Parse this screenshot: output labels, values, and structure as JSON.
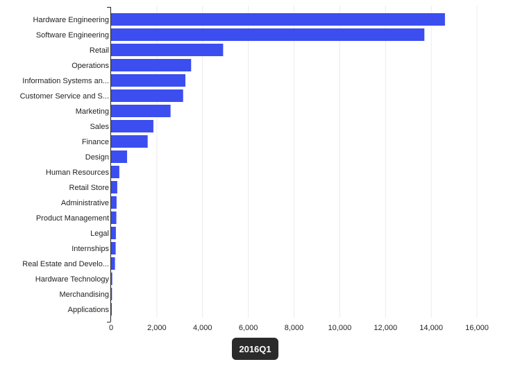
{
  "chart_data": {
    "type": "bar",
    "orientation": "horizontal",
    "categories": [
      "Hardware Engineering",
      "Software Engineering",
      "Retail",
      "Operations",
      "Information Systems an...",
      "Customer Service and S...",
      "Marketing",
      "Sales",
      "Finance",
      "Design",
      "Human Resources",
      "Retail Store",
      "Administrative",
      "Product Management",
      "Legal",
      "Internships",
      "Real Estate and Develo...",
      "Hardware Technology",
      "Merchandising",
      "Applications"
    ],
    "values": [
      14600,
      13700,
      4900,
      3500,
      3250,
      3150,
      2600,
      1850,
      1600,
      700,
      360,
      270,
      240,
      230,
      210,
      200,
      170,
      50,
      40,
      20
    ],
    "xlim": [
      0,
      16000
    ],
    "x_ticks": [
      "0",
      "2,000",
      "4,000",
      "6,000",
      "8,000",
      "10,000",
      "12,000",
      "14,000",
      "16,000"
    ],
    "x_tick_values": [
      0,
      2000,
      4000,
      6000,
      8000,
      10000,
      12000,
      14000,
      16000
    ],
    "grid": true,
    "bar_color": "#3c4ef0",
    "title": "",
    "xlabel": "",
    "ylabel": ""
  },
  "period_badge": {
    "label": "2016Q1"
  }
}
